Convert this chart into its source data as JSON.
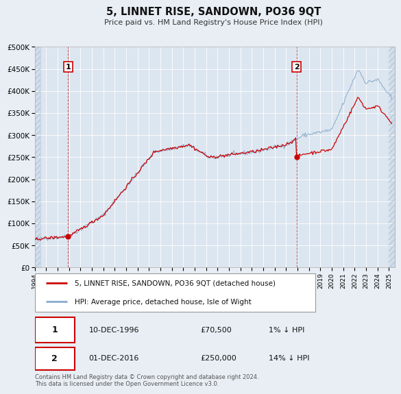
{
  "title": "5, LINNET RISE, SANDOWN, PO36 9QT",
  "subtitle": "Price paid vs. HM Land Registry's House Price Index (HPI)",
  "legend_entries": [
    "5, LINNET RISE, SANDOWN, PO36 9QT (detached house)",
    "HPI: Average price, detached house, Isle of Wight"
  ],
  "legend_colors": [
    "#cc0000",
    "#88aacc"
  ],
  "annotation1_date": "10-DEC-1996",
  "annotation1_value": "£70,500",
  "annotation1_pct": "1% ↓ HPI",
  "annotation2_date": "01-DEC-2016",
  "annotation2_value": "£250,000",
  "annotation2_pct": "14% ↓ HPI",
  "footer": "Contains HM Land Registry data © Crown copyright and database right 2024.\nThis data is licensed under the Open Government Licence v3.0.",
  "xmin": 1994.0,
  "xmax": 2025.5,
  "ymin": 0,
  "ymax": 500000,
  "yticks": [
    0,
    50000,
    100000,
    150000,
    200000,
    250000,
    300000,
    350000,
    400000,
    450000,
    500000
  ],
  "ytick_labels": [
    "£0",
    "£50K",
    "£100K",
    "£150K",
    "£200K",
    "£250K",
    "£300K",
    "£350K",
    "£400K",
    "£450K",
    "£500K"
  ],
  "sale1_x": 1996.92,
  "sale1_y": 70500,
  "sale2_x": 2016.92,
  "sale2_y": 250000,
  "bg_color": "#e8eef4",
  "plot_bg_color": "#dce6f0",
  "grid_color": "#ffffff",
  "sale_marker_color": "#cc0000",
  "hpi_line_color": "#88aacc",
  "price_line_color": "#cc0000",
  "hatch_color": "#c8d8e8"
}
